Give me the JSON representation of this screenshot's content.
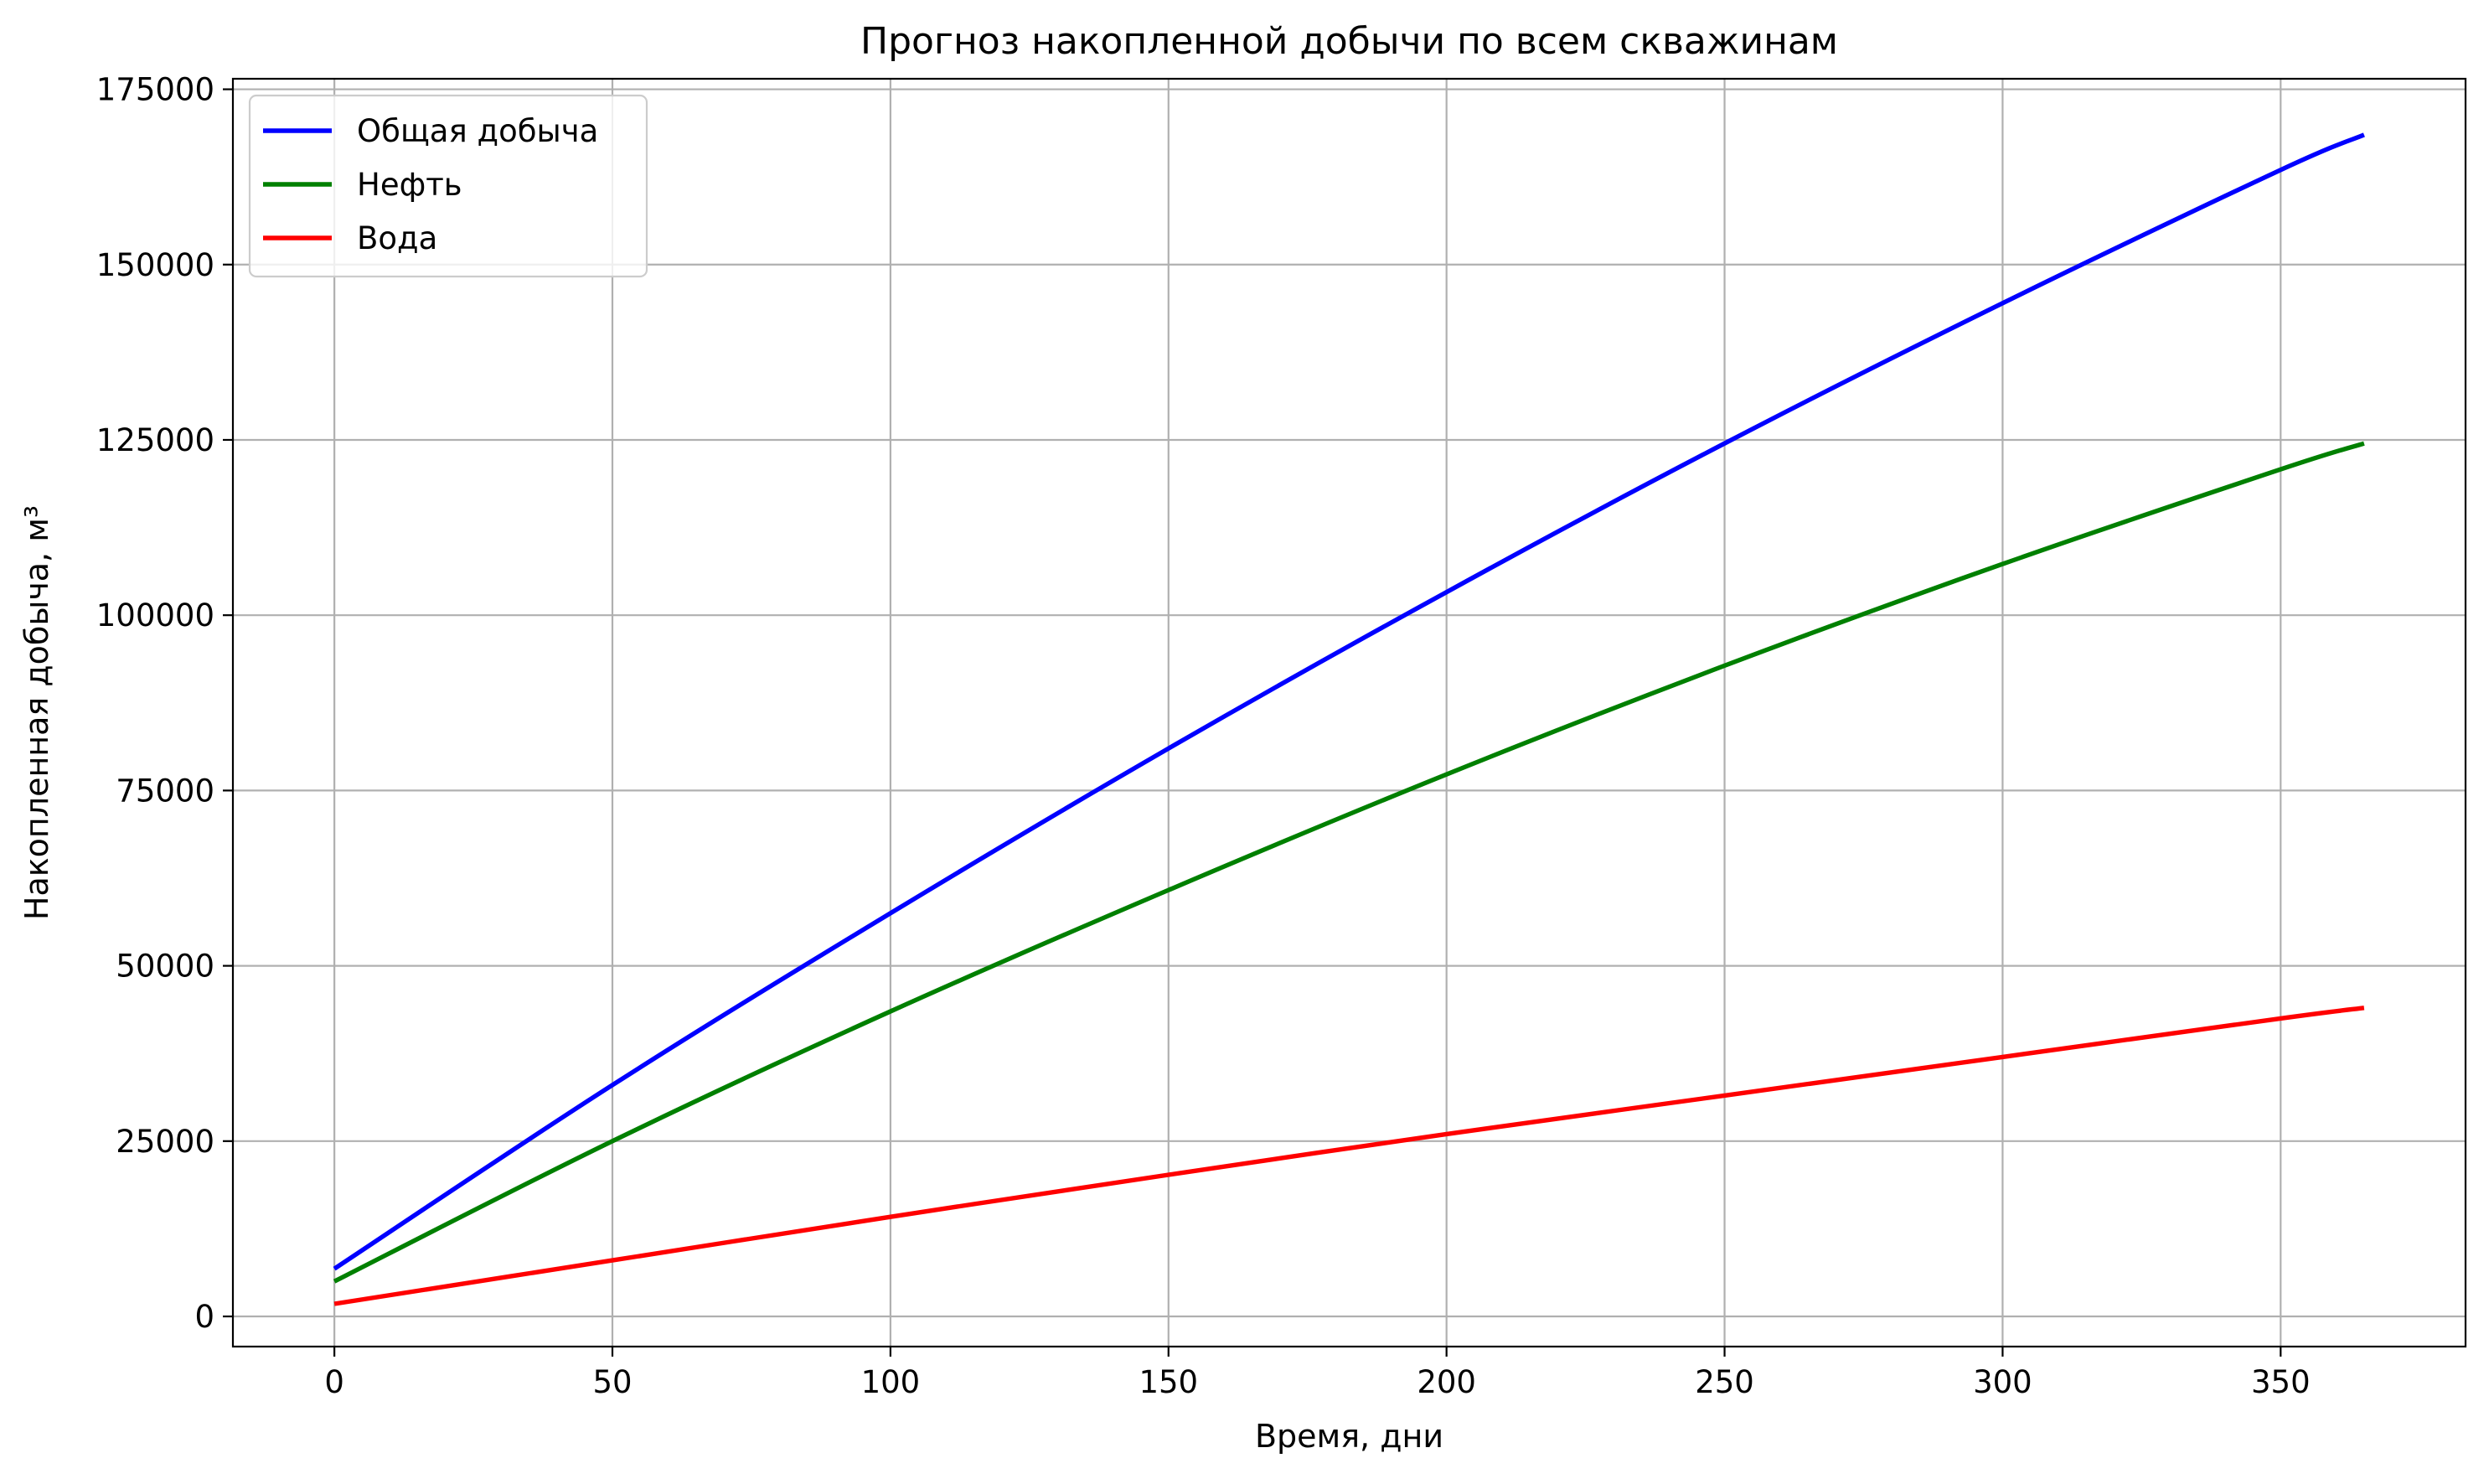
{
  "chart_data": {
    "type": "line",
    "title": "Прогноз накопленной добычи по всем скважинам",
    "xlabel": "Время, дни",
    "ylabel": "Накопленная добыча, м³",
    "xlim": [
      -18.25,
      383.25
    ],
    "ylim": [
      -4300,
      176500
    ],
    "xticks": [
      0,
      50,
      100,
      150,
      200,
      250,
      300,
      350
    ],
    "yticks": [
      0,
      25000,
      50000,
      75000,
      100000,
      125000,
      150000,
      175000
    ],
    "grid": true,
    "legend_position": "upper-left",
    "series": [
      {
        "name": "Общая добыча",
        "color": "#0000ff",
        "x": [
          0,
          50,
          100,
          150,
          200,
          250,
          300,
          350,
          365
        ],
        "y": [
          6800,
          33000,
          57500,
          81000,
          103300,
          124500,
          144500,
          163500,
          168500
        ]
      },
      {
        "name": "Нефть",
        "color": "#008000",
        "x": [
          0,
          50,
          100,
          150,
          200,
          250,
          300,
          350,
          365
        ],
        "y": [
          5000,
          25000,
          43500,
          60800,
          77300,
          92800,
          107300,
          120800,
          124500
        ]
      },
      {
        "name": "Вода",
        "color": "#ff0000",
        "x": [
          0,
          50,
          100,
          150,
          200,
          250,
          300,
          350,
          365
        ],
        "y": [
          1800,
          8000,
          14200,
          20200,
          26000,
          31500,
          37000,
          42500,
          44000
        ]
      }
    ]
  }
}
